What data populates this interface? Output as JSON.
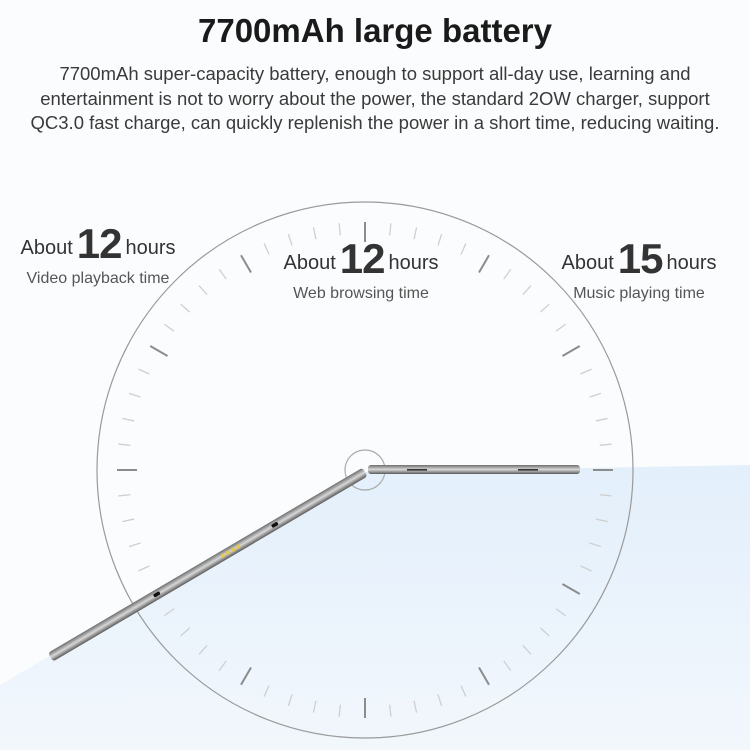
{
  "heading": "7700mAh large battery",
  "description": "7700mAh super-capacity battery, enough to support all-day use, learning and entertainment is not to worry about the power, the standard 2OW charger, support QC3.0 fast charge, can quickly replenish the power in a short time, reducing waiting.",
  "stats": [
    {
      "prefix": "About",
      "value": "12",
      "unit": "hours",
      "label": "Video playback time"
    },
    {
      "prefix": "About",
      "value": "12",
      "unit": "hours",
      "label": "Web browsing time"
    },
    {
      "prefix": "About",
      "value": "15",
      "unit": "hours",
      "label": "Music playing time"
    }
  ],
  "colors": {
    "background": "#fbfcfd",
    "accent_blue": "#d9e9f8",
    "tablet": "#8a8a8a"
  }
}
